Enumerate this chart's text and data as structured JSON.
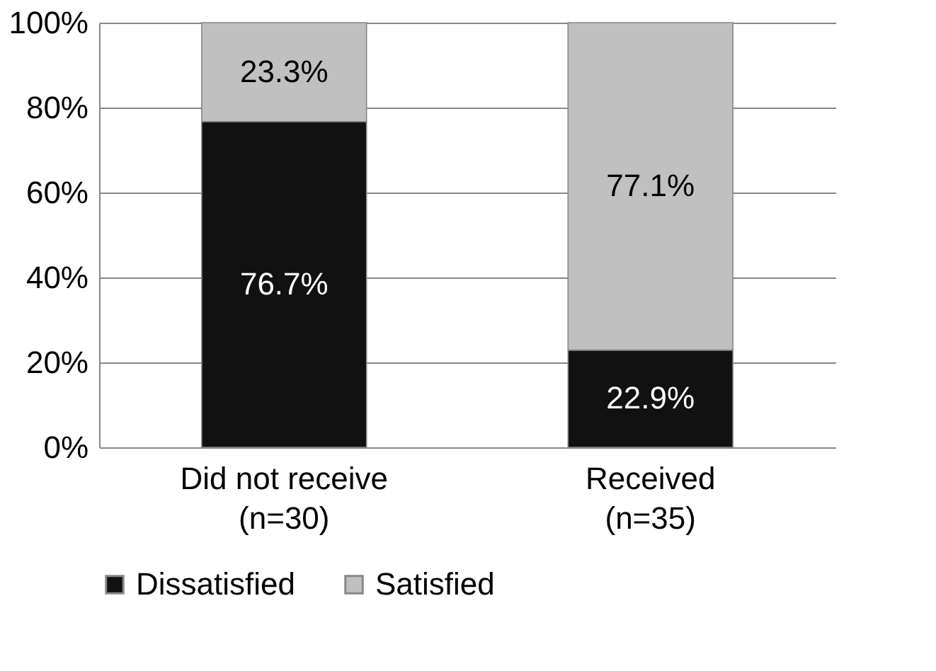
{
  "chart_data": {
    "type": "bar",
    "stacked": true,
    "categories": [
      "Did not receive\n(n=30)",
      "Received\n(n=35)"
    ],
    "series": [
      {
        "name": "Dissatisfied",
        "color": "#111111",
        "values": [
          76.7,
          22.9
        ],
        "value_labels": [
          "76.7%",
          "22.9%"
        ]
      },
      {
        "name": "Satisfied",
        "color": "#c0c0c0",
        "values": [
          23.3,
          77.1
        ],
        "value_labels": [
          "23.3%",
          "77.1%"
        ]
      }
    ],
    "ylim": [
      0,
      100
    ],
    "yticks": [
      {
        "value": 0,
        "label": "0%"
      },
      {
        "value": 20,
        "label": "20%"
      },
      {
        "value": 40,
        "label": "40%"
      },
      {
        "value": 60,
        "label": "60%"
      },
      {
        "value": 80,
        "label": "80%"
      },
      {
        "value": 100,
        "label": "100%"
      }
    ],
    "grid": "y",
    "legend": "bottom"
  }
}
